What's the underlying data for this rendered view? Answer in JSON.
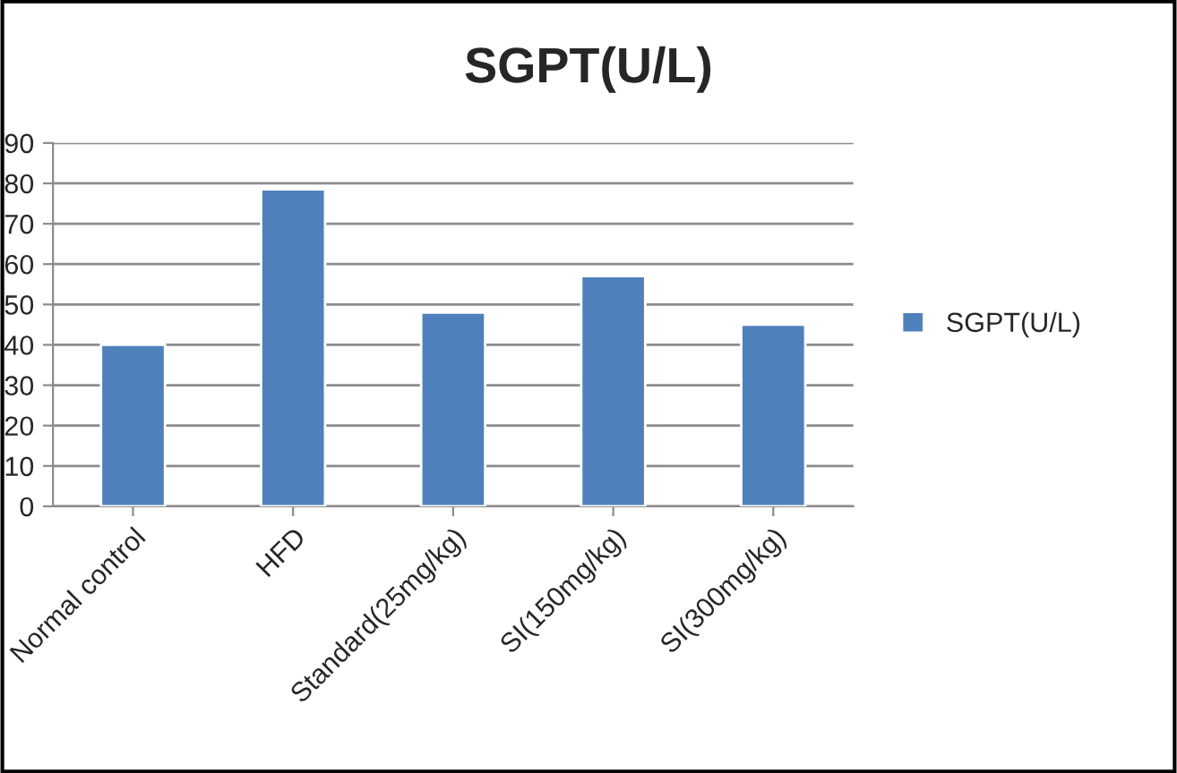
{
  "chart_data": {
    "type": "bar",
    "title": "SGPT(U/L)",
    "categories": [
      "Normal control",
      "HFD",
      "Standard(25mg/kg)",
      "SI(150mg/kg)",
      "SI(300mg/kg)"
    ],
    "series": [
      {
        "name": "SGPT(U/L)",
        "color": "#4f81bd",
        "values": [
          40,
          78.5,
          48,
          57,
          45
        ]
      }
    ],
    "ylim": [
      0,
      90
    ],
    "yticks": [
      0,
      10,
      20,
      30,
      40,
      50,
      60,
      70,
      80,
      90
    ],
    "grid": "y",
    "legend": "right"
  }
}
